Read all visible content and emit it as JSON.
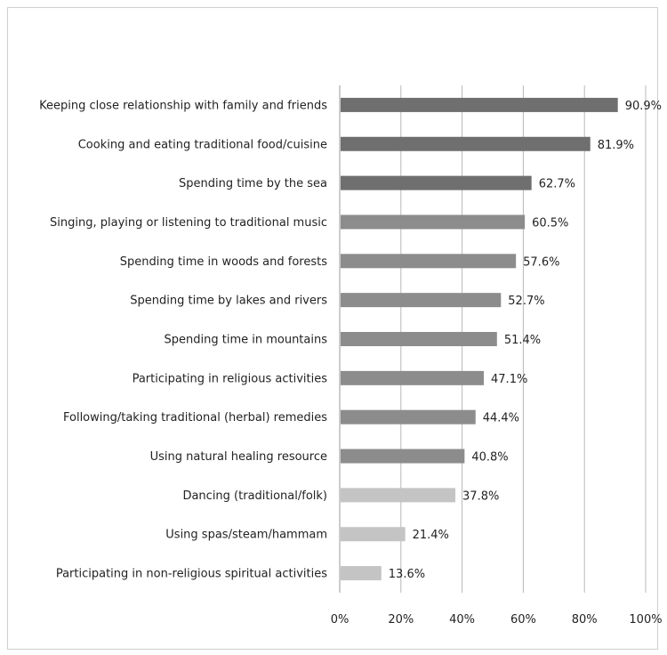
{
  "chart_data": {
    "type": "bar",
    "orientation": "horizontal",
    "categories": [
      "Keeping close relationship with family and friends",
      "Cooking and eating traditional food/cuisine",
      "Spending time by the sea",
      "Singing, playing or listening to traditional music",
      "Spending time in woods and forests",
      "Spending time by lakes and rivers",
      "Spending time in mountains",
      "Participating in religious activities",
      "Following/taking traditional (herbal) remedies",
      "Using natural healing resource",
      "Dancing (traditional/folk)",
      "Using spas/steam/hammam",
      "Participating in non-religious spiritual activities"
    ],
    "values": [
      90.9,
      81.9,
      62.7,
      60.5,
      57.6,
      52.7,
      51.4,
      47.1,
      44.4,
      40.8,
      37.8,
      21.4,
      13.6
    ],
    "value_labels": [
      "90.9%",
      "81.9%",
      "62.7%",
      "60.5%",
      "57.6%",
      "52.7%",
      "51.4%",
      "47.1%",
      "44.4%",
      "40.8%",
      "37.8%",
      "21.4%",
      "13.6%"
    ],
    "bar_colors": [
      "#6f6f6f",
      "#6f6f6f",
      "#6f6f6f",
      "#8c8c8c",
      "#8c8c8c",
      "#8c8c8c",
      "#8c8c8c",
      "#8c8c8c",
      "#8c8c8c",
      "#8c8c8c",
      "#c4c4c4",
      "#c4c4c4",
      "#c4c4c4"
    ],
    "xlim": [
      0,
      100
    ],
    "xticks": [
      0,
      20,
      40,
      60,
      80,
      100
    ],
    "xtick_labels": [
      "0%",
      "20%",
      "40%",
      "60%",
      "80%",
      "100%"
    ],
    "grid": true,
    "title": "",
    "xlabel": "",
    "ylabel": ""
  }
}
